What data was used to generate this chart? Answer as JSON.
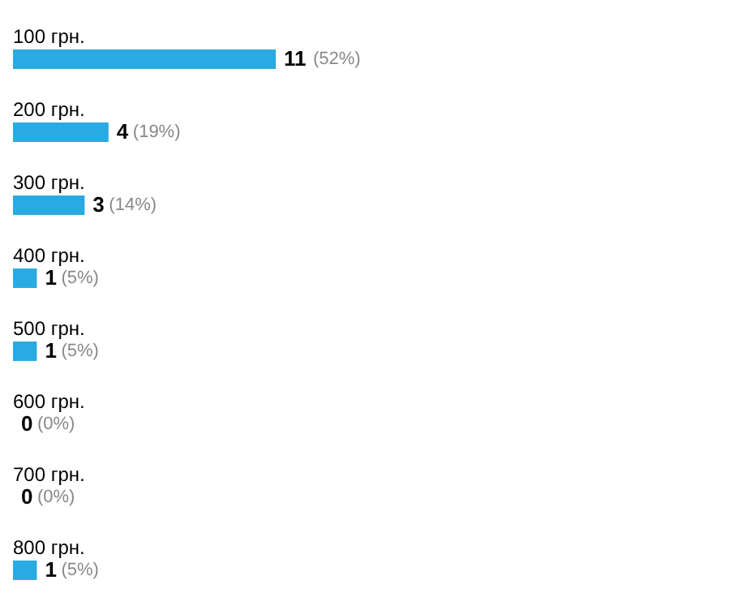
{
  "chart_data": {
    "type": "bar",
    "orientation": "horizontal",
    "categories": [
      "100 грн.",
      "200 грн.",
      "300 грн.",
      "400 грн.",
      "500 грн.",
      "600 грн.",
      "700 грн.",
      "800 грн."
    ],
    "values": [
      11,
      4,
      3,
      1,
      1,
      0,
      0,
      1
    ],
    "color": "#2aaae2",
    "data_labels": true,
    "annotations": [
      {
        "text": "(52%)",
        "x": 11,
        "y": "100 грн."
      },
      {
        "text": "(19%)",
        "x": 4,
        "y": "200 грн."
      },
      {
        "text": "(14%)",
        "x": 3,
        "y": "300 грн."
      },
      {
        "text": "(5%)",
        "x": 1,
        "y": "400 грн."
      },
      {
        "text": "(5%)",
        "x": 1,
        "y": "500 грн."
      },
      {
        "text": "(0%)",
        "x": 0,
        "y": "600 грн."
      },
      {
        "text": "(0%)",
        "x": 0,
        "y": "700 грн."
      },
      {
        "text": "(5%)",
        "x": 1,
        "y": "800 грн."
      }
    ]
  }
}
